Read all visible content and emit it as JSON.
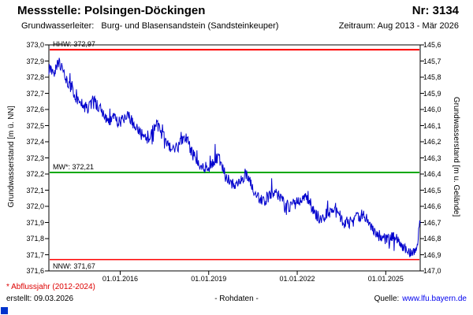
{
  "header": {
    "title": "Messstelle: Polsingen-Döckingen",
    "number": "Nr: 3134",
    "aquifer_label": "Grundwasserleiter:",
    "aquifer_value": "Burg- und Blasensandstein (Sandsteinkeuper)",
    "period": "Zeitraum: Aug 2013 - Mär 2026"
  },
  "footer": {
    "note": "* Abflussjahr (2012-2024)",
    "created": "erstellt:  09.03.2026",
    "center": "- Rohdaten -",
    "source_label": "Quelle:",
    "source_link": "www.lfu.bayern.de"
  },
  "chart_data": {
    "type": "line",
    "title": "Messstelle: Polsingen-Döckingen, Nr: 3134",
    "ylabel_left": "Grundwasserstand [m ü. NN]",
    "ylabel_right": "Grundwasserstand [m u. Gelände]",
    "ylim_left": [
      371.6,
      373.0
    ],
    "ylim_right_top_to_bottom": [
      145.6,
      147.0
    ],
    "grid": false,
    "x_start": "Aug 2013",
    "x_end": "Mär 2026",
    "x_unit": "months since Aug 2013",
    "x_range_months": [
      0,
      151
    ],
    "left_ticks": [
      "373,0",
      "372,9",
      "372,8",
      "372,7",
      "372,6",
      "372,5",
      "372,4",
      "372,3",
      "372,2",
      "372,1",
      "372,0",
      "371,9",
      "371,8",
      "371,7",
      "371,6"
    ],
    "right_ticks": [
      "145,6",
      "145,7",
      "145,8",
      "145,9",
      "146,0",
      "146,1",
      "146,2",
      "146,3",
      "146,4",
      "146,5",
      "146,6",
      "146,7",
      "146,8",
      "146,9",
      "147,0"
    ],
    "x_ticks": [
      {
        "label": "01.01.2016",
        "month": 29
      },
      {
        "label": "01.01.2019",
        "month": 65
      },
      {
        "label": "01.01.2022",
        "month": 101
      },
      {
        "label": "01.01.2025",
        "month": 137
      }
    ],
    "ref_lines": [
      {
        "name": "HHW",
        "label": "HHW: 372,97",
        "value": 372.97,
        "color": "#ff0000",
        "width": 2
      },
      {
        "name": "MW",
        "label": "MW*: 372,21",
        "value": 372.21,
        "color": "#00a800",
        "width": 2
      },
      {
        "name": "NNW",
        "label": "NNW: 371,67",
        "value": 371.67,
        "color": "#ff0000",
        "width": 1.5
      }
    ],
    "series": [
      {
        "name": "Grundwasserstand Rohdaten",
        "color": "#0000cd",
        "anchors": [
          [
            0,
            372.85
          ],
          [
            2,
            372.82
          ],
          [
            4,
            372.9
          ],
          [
            6,
            372.84
          ],
          [
            8,
            372.76
          ],
          [
            10,
            372.7
          ],
          [
            12,
            372.66
          ],
          [
            14,
            372.62
          ],
          [
            16,
            372.6
          ],
          [
            18,
            372.66
          ],
          [
            20,
            372.62
          ],
          [
            22,
            372.58
          ],
          [
            24,
            372.52
          ],
          [
            26,
            372.55
          ],
          [
            29,
            372.52
          ],
          [
            32,
            372.58
          ],
          [
            34,
            372.52
          ],
          [
            36,
            372.48
          ],
          [
            38,
            372.44
          ],
          [
            40,
            372.42
          ],
          [
            42,
            372.46
          ],
          [
            44,
            372.5
          ],
          [
            46,
            372.44
          ],
          [
            48,
            372.4
          ],
          [
            50,
            372.36
          ],
          [
            52,
            372.36
          ],
          [
            54,
            372.4
          ],
          [
            56,
            372.42
          ],
          [
            58,
            372.34
          ],
          [
            60,
            372.28
          ],
          [
            62,
            372.24
          ],
          [
            65,
            372.24
          ],
          [
            67,
            372.28
          ],
          [
            69,
            372.3
          ],
          [
            72,
            372.18
          ],
          [
            74,
            372.14
          ],
          [
            76,
            372.12
          ],
          [
            78,
            372.16
          ],
          [
            80,
            372.2
          ],
          [
            82,
            372.14
          ],
          [
            84,
            372.08
          ],
          [
            86,
            372.04
          ],
          [
            88,
            372.04
          ],
          [
            90,
            372.08
          ],
          [
            92,
            372.1
          ],
          [
            94,
            372.06
          ],
          [
            96,
            372.02
          ],
          [
            98,
            372.0
          ],
          [
            101,
            372.02
          ],
          [
            103,
            372.05
          ],
          [
            105,
            372.06
          ],
          [
            108,
            371.96
          ],
          [
            110,
            371.93
          ],
          [
            112,
            371.94
          ],
          [
            114,
            371.98
          ],
          [
            116,
            372.0
          ],
          [
            118,
            371.95
          ],
          [
            120,
            371.9
          ],
          [
            122,
            371.9
          ],
          [
            124,
            371.92
          ],
          [
            126,
            371.94
          ],
          [
            128,
            371.95
          ],
          [
            130,
            371.9
          ],
          [
            132,
            371.85
          ],
          [
            134,
            371.82
          ],
          [
            136,
            371.8
          ],
          [
            138,
            371.8
          ],
          [
            140,
            371.82
          ],
          [
            142,
            371.78
          ],
          [
            144,
            371.74
          ],
          [
            146,
            371.72
          ],
          [
            148,
            371.71
          ],
          [
            150,
            371.78
          ],
          [
            151,
            371.9
          ]
        ]
      }
    ]
  }
}
